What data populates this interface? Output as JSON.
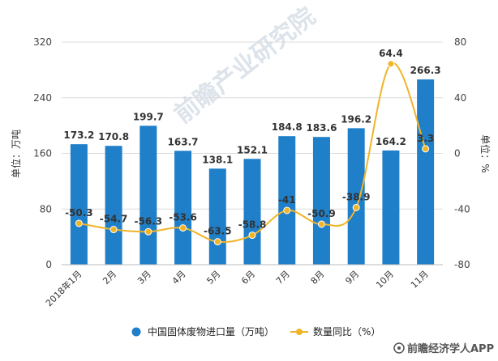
{
  "chart_data": {
    "type": "bar+line",
    "categories": [
      "2018年1月",
      "2月",
      "3月",
      "4月",
      "5月",
      "6月",
      "7月",
      "8月",
      "9月",
      "10月",
      "11月"
    ],
    "series": [
      {
        "name": "中国固体废物进口量（万吨）",
        "type": "bar",
        "axis": "left",
        "values": [
          173.2,
          170.8,
          199.7,
          163.7,
          138.1,
          152.1,
          184.8,
          183.6,
          196.2,
          164.2,
          266.3
        ],
        "labels": [
          "173.2",
          "170.8",
          "199.7",
          "163.7",
          "138.1",
          "152.1",
          "184.8",
          "183.6",
          "196.2",
          "164.2",
          "266.3"
        ]
      },
      {
        "name": "数量同比（%）",
        "type": "line",
        "axis": "right",
        "values": [
          -50.3,
          -54.7,
          -56.3,
          -53.6,
          -63.5,
          -58.8,
          -41,
          -50.9,
          -38.9,
          64.4,
          3.3
        ],
        "labels": [
          "-50.3",
          "-54.7",
          "-56.3",
          "-53.6",
          "-63.5",
          "-58.8",
          "-41",
          "-50.9",
          "-38.9",
          "64.4",
          "3.3"
        ]
      }
    ],
    "ylabel_left": "单位：万吨",
    "ylabel_right": "单位：%",
    "ylim_left": [
      0,
      320
    ],
    "yticks_left": [
      "0",
      "80",
      "160",
      "240",
      "320"
    ],
    "ylim_right": [
      -80,
      80
    ],
    "yticks_right": [
      "-80",
      "-40",
      "0",
      "40",
      "80"
    ],
    "legend_position": "bottom",
    "colors": {
      "bar": "#1f7fc8",
      "line": "#f0b429"
    }
  },
  "watermark": "前瞻经济学人APP"
}
